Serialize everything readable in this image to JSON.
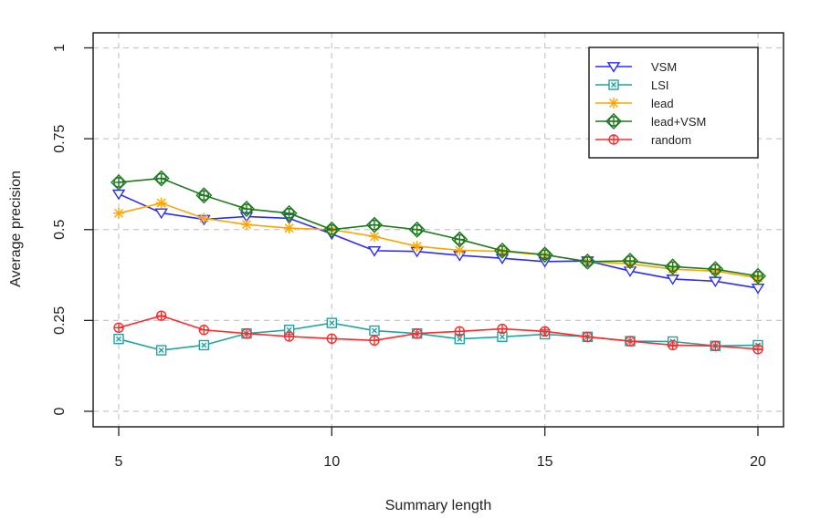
{
  "chart_data": {
    "type": "line",
    "title": "",
    "xlabel": "Summary length",
    "ylabel": "Average precision",
    "x": [
      5,
      6,
      7,
      8,
      9,
      10,
      11,
      12,
      13,
      14,
      15,
      16,
      17,
      18,
      19,
      20
    ],
    "xlim": [
      4.4,
      20.6
    ],
    "ylim": [
      -0.04,
      1.04
    ],
    "xticks": [
      5,
      10,
      15,
      20
    ],
    "xtick_labels": [
      "5",
      "10",
      "15",
      "20"
    ],
    "yticks": [
      0,
      0.25,
      0.5,
      0.75,
      1
    ],
    "ytick_labels": [
      "0",
      "0.25",
      "0.5",
      "0.75",
      "1"
    ],
    "grid": true,
    "legend_position": "top-right",
    "series": [
      {
        "name": "VSM",
        "color": "#2b2bff",
        "marker": "triangle-down",
        "values": [
          0.598,
          0.546,
          0.528,
          0.536,
          0.531,
          0.488,
          0.442,
          0.44,
          0.429,
          0.421,
          0.412,
          0.414,
          0.386,
          0.364,
          0.358,
          0.339
        ]
      },
      {
        "name": "LSI",
        "color": "#1fa3a3",
        "marker": "square-x",
        "values": [
          0.199,
          0.168,
          0.182,
          0.214,
          0.224,
          0.243,
          0.222,
          0.214,
          0.199,
          0.205,
          0.212,
          0.205,
          0.193,
          0.192,
          0.18,
          0.182
        ]
      },
      {
        "name": "lead",
        "color": "#ffa500",
        "marker": "asterisk",
        "values": [
          0.545,
          0.573,
          0.531,
          0.514,
          0.504,
          0.5,
          0.481,
          0.454,
          0.443,
          0.44,
          0.43,
          0.412,
          0.406,
          0.391,
          0.386,
          0.367
        ]
      },
      {
        "name": "lead+VSM",
        "color": "#1e7a1e",
        "marker": "circle-plus-diamond",
        "values": [
          0.63,
          0.641,
          0.594,
          0.557,
          0.545,
          0.5,
          0.513,
          0.5,
          0.473,
          0.442,
          0.431,
          0.412,
          0.414,
          0.398,
          0.391,
          0.372
        ]
      },
      {
        "name": "random",
        "color": "#ff2a2a",
        "marker": "circle-plus",
        "values": [
          0.23,
          0.263,
          0.224,
          0.214,
          0.206,
          0.2,
          0.195,
          0.214,
          0.22,
          0.227,
          0.22,
          0.205,
          0.193,
          0.182,
          0.18,
          0.171
        ]
      }
    ]
  }
}
